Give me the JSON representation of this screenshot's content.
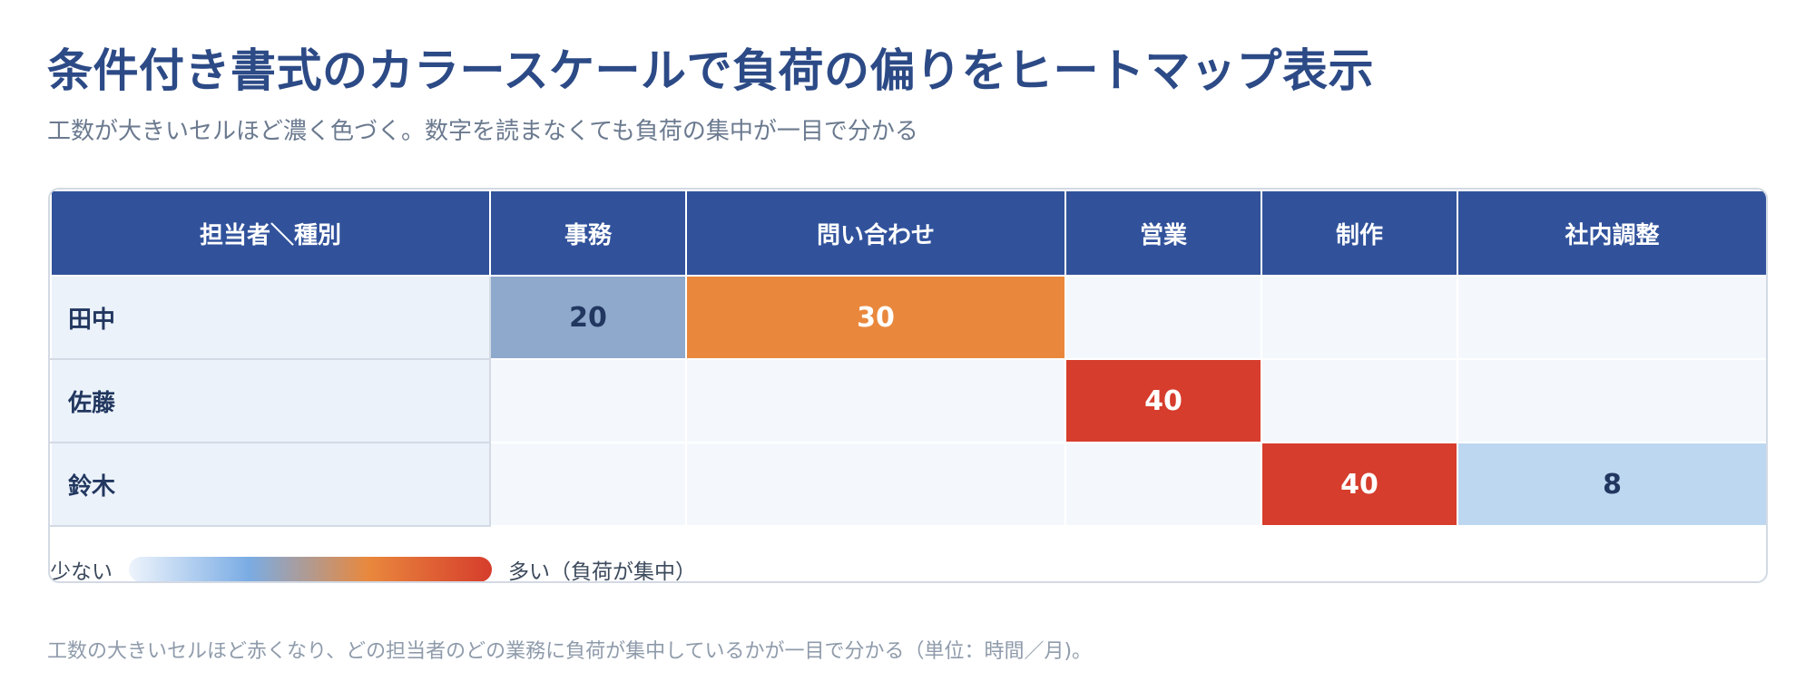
{
  "title": "条件付き書式のカラースケールで負荷の偏りをヒートマップ表示",
  "subtitle": "工数が大きいセルほど濃く色づく。数字を読まなくても負荷の集中が一目で分かる",
  "footnote": "工数の大きいセルほど赤くなり、どの担当者のどの業務に負荷が集中しているかが一目で分かる（単位：時間／月)。",
  "legend": {
    "low": "少ない",
    "high": "多い（負荷が集中）"
  },
  "colors": {
    "header": "#31529b",
    "row_header": "#ebf2fa",
    "empty_cell": "#f4f8fc",
    "scale": [
      "#bdd7f1",
      "#8fa9cc",
      "#e9883d",
      "#d63d2c"
    ]
  },
  "chart_data": {
    "type": "heatmap",
    "corner_label": "担当者＼種別",
    "columns": [
      "事務",
      "問い合わせ",
      "営業",
      "制作",
      "社内調整"
    ],
    "rows": [
      {
        "name": "田中",
        "values": [
          20,
          30,
          null,
          null,
          null
        ]
      },
      {
        "name": "佐藤",
        "values": [
          null,
          null,
          40,
          null,
          null
        ]
      },
      {
        "name": "鈴木",
        "values": [
          null,
          null,
          null,
          40,
          8
        ]
      }
    ],
    "unit": "時間／月"
  }
}
